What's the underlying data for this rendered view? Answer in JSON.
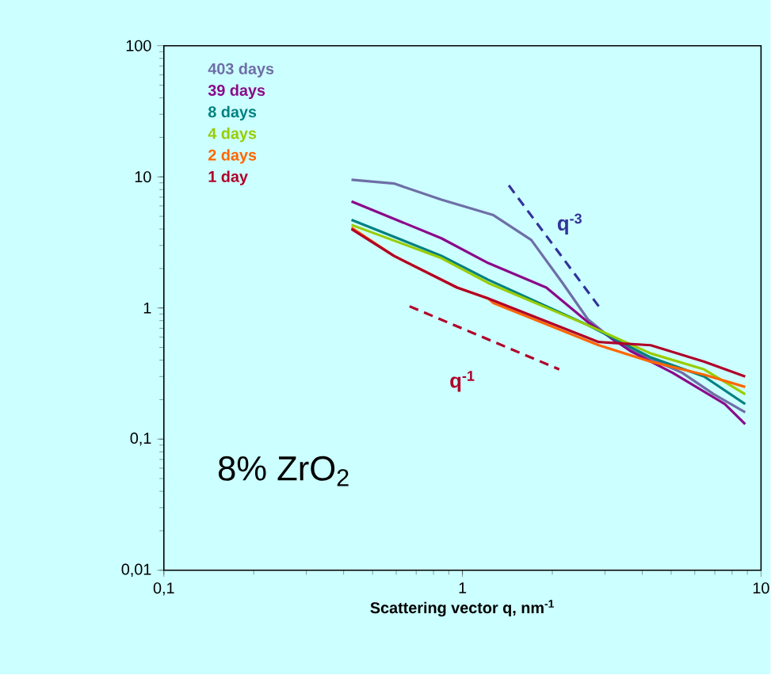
{
  "chart_data": {
    "type": "line",
    "xlabel": "Scattering vector q, nm$^{-1}$",
    "log": "xy",
    "xlim": [
      0.1,
      10
    ],
    "ylim": [
      0.01,
      100
    ],
    "xticks": [
      {
        "value": 0.1,
        "label": "0,1"
      },
      1,
      10
    ],
    "yticks": [
      {
        "value": 0.01,
        "label": "0,01"
      },
      {
        "value": 0.1,
        "label": "0,1"
      },
      1,
      10,
      100
    ],
    "grid": false,
    "legend": "top left",
    "series": [
      {
        "name": "403 days",
        "color": "#6e6ea6",
        "x": [
          0.425,
          0.589,
          0.85,
          1.27,
          1.7,
          2.16,
          2.63,
          3.23,
          4.27,
          5.45,
          6.95,
          8.85
        ],
        "values": [
          9.5,
          8.9,
          6.7,
          5.1,
          3.3,
          1.56,
          0.82,
          0.56,
          0.41,
          0.32,
          0.22,
          0.16
        ]
      },
      {
        "name": "39 days",
        "color": "#8a0a8a",
        "x": [
          0.425,
          0.85,
          1.22,
          1.91,
          2.63,
          3.65,
          5.06,
          7.57,
          8.85
        ],
        "values": [
          6.5,
          3.4,
          2.2,
          1.43,
          0.78,
          0.47,
          0.32,
          0.185,
          0.13
        ]
      },
      {
        "name": "8 days",
        "color": "#008080",
        "x": [
          0.425,
          0.85,
          1.22,
          2.63,
          4.27,
          6.45,
          8.85
        ],
        "values": [
          4.7,
          2.5,
          1.64,
          0.74,
          0.42,
          0.3,
          0.185
        ]
      },
      {
        "name": "4 days",
        "color": "#99cc00",
        "x": [
          0.425,
          0.85,
          1.22,
          2.63,
          4.27,
          6.45,
          8.85
        ],
        "values": [
          4.3,
          2.4,
          1.55,
          0.74,
          0.45,
          0.34,
          0.22
        ]
      },
      {
        "name": "2 days",
        "color": "#ff6600",
        "x": [
          0.425,
          0.589,
          0.96,
          1.22,
          1.27,
          2.86,
          4.27,
          6.45,
          8.85
        ],
        "values": [
          4.1,
          2.5,
          1.43,
          1.18,
          1.09,
          0.52,
          0.39,
          0.31,
          0.25
        ]
      },
      {
        "name": "1 day",
        "color": "#b00028",
        "x": [
          0.425,
          0.589,
          0.96,
          1.22,
          2.86,
          4.27,
          6.45,
          8.85
        ],
        "values": [
          4.0,
          2.5,
          1.43,
          1.18,
          0.55,
          0.52,
          0.39,
          0.3
        ]
      },
      {
        "color": "#333399",
        "line_style": "dashed",
        "x": [
          1.43,
          2.86
        ],
        "values": [
          8.6,
          1.03
        ]
      },
      {
        "color": "#b00028",
        "line_style": "dashed",
        "x": [
          0.665,
          2.11
        ],
        "values": [
          1.03,
          0.34
        ]
      }
    ],
    "annotations": [
      "8% ZrO$_{2}$",
      "q$^{-3}$",
      "q$^{-1}$"
    ]
  }
}
